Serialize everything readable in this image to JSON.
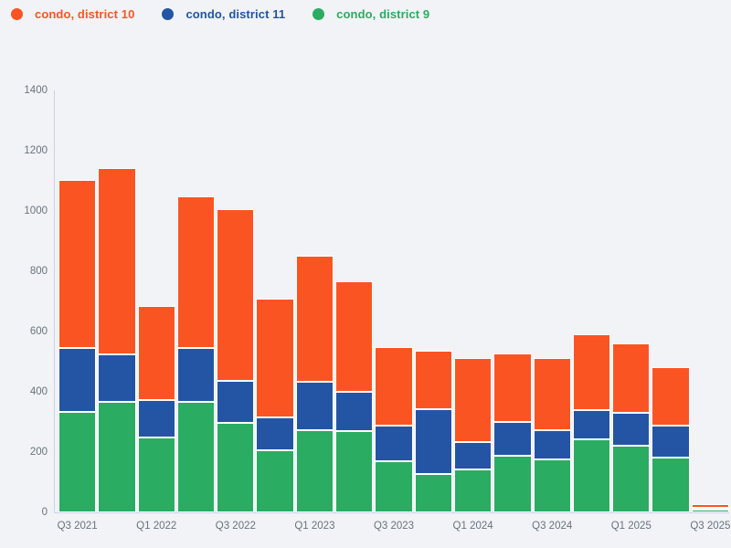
{
  "page": {
    "background": "#f1f3f6",
    "axis_line_color": "#c9d3e6",
    "tick_text_color": "#6a737d",
    "segment_border_color": "#ffffff"
  },
  "legend": [
    {
      "label": "condo, district 10",
      "color": "#fb5423"
    },
    {
      "label": "condo, district 11",
      "color": "#2355a4"
    },
    {
      "label": "condo, district 9",
      "color": "#2aac62"
    }
  ],
  "chart_data": {
    "type": "bar",
    "stacked": true,
    "title": "",
    "xlabel": "",
    "ylabel": "",
    "ylim": [
      0,
      1400
    ],
    "yticks": [
      0,
      200,
      400,
      600,
      800,
      1000,
      1200,
      1400
    ],
    "grid": false,
    "legend_position": "top-left",
    "categories": [
      "Q3 2021",
      "Q4 2021",
      "Q1 2022",
      "Q2 2022",
      "Q3 2022",
      "Q4 2022",
      "Q1 2023",
      "Q2 2023",
      "Q3 2023",
      "Q4 2023",
      "Q1 2024",
      "Q2 2024",
      "Q3 2024",
      "Q4 2024",
      "Q1 2025",
      "Q2 2025",
      "Q3 2025"
    ],
    "xtick_labels": [
      "Q3 2021",
      "Q1 2022",
      "Q3 2022",
      "Q1 2023",
      "Q3 2023",
      "Q1 2024",
      "Q3 2024",
      "Q1 2025",
      "Q3 2025"
    ],
    "stack_order_bottom_to_top": [
      "condo, district 9",
      "condo, district 11",
      "condo, district 10"
    ],
    "series": [
      {
        "name": "condo, district 10",
        "color": "#fb5423",
        "values": [
          558,
          620,
          311,
          505,
          571,
          392,
          419,
          368,
          260,
          192,
          280,
          229,
          239,
          254,
          230,
          195,
          12
        ]
      },
      {
        "name": "condo, district 11",
        "color": "#2355a4",
        "values": [
          213,
          155,
          124,
          178,
          139,
          109,
          159,
          131,
          118,
          217,
          92,
          111,
          97,
          95,
          109,
          106,
          4
        ]
      },
      {
        "name": "condo, district 9",
        "color": "#2aac62",
        "values": [
          333,
          368,
          250,
          367,
          296,
          207,
          273,
          269,
          170,
          126,
          141,
          188,
          177,
          243,
          222,
          182,
          8
        ]
      }
    ],
    "totals": [
      1104,
      1143,
      685,
      1050,
      1006,
      708,
      851,
      768,
      548,
      535,
      513,
      528,
      513,
      592,
      561,
      483,
      24
    ]
  }
}
